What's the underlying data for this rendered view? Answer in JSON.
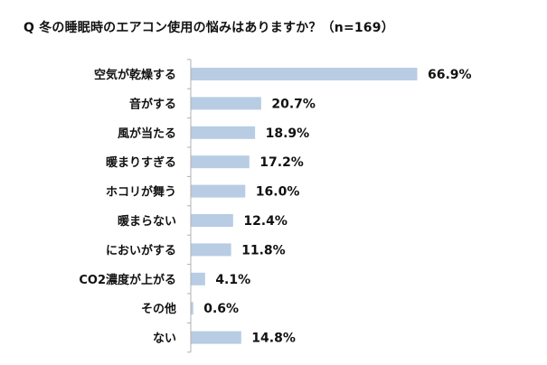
{
  "chart_data": {
    "type": "bar",
    "orientation": "horizontal",
    "title": "Q 冬の睡眠時のエアコン使用の悩みはありますか？（n=169）",
    "categories": [
      "空気が乾燥する",
      "音がする",
      "風が当たる",
      "暖まりすぎる",
      "ホコリが舞う",
      "暖まらない",
      "においがする",
      "CO2濃度が上がる",
      "その他",
      "ない"
    ],
    "values": [
      66.9,
      20.7,
      18.9,
      17.2,
      16.0,
      12.4,
      11.8,
      4.1,
      0.6,
      14.8
    ],
    "data_labels": [
      "66.9%",
      "20.7%",
      "18.9%",
      "17.2%",
      "16.0%",
      "12.4%",
      "11.8%",
      "4.1%",
      "0.6%",
      "14.8%"
    ],
    "value_unit": "%",
    "bar_color": "#b8cce4",
    "axis_color": "#b0b0b0",
    "grid": false,
    "legend": "none"
  }
}
